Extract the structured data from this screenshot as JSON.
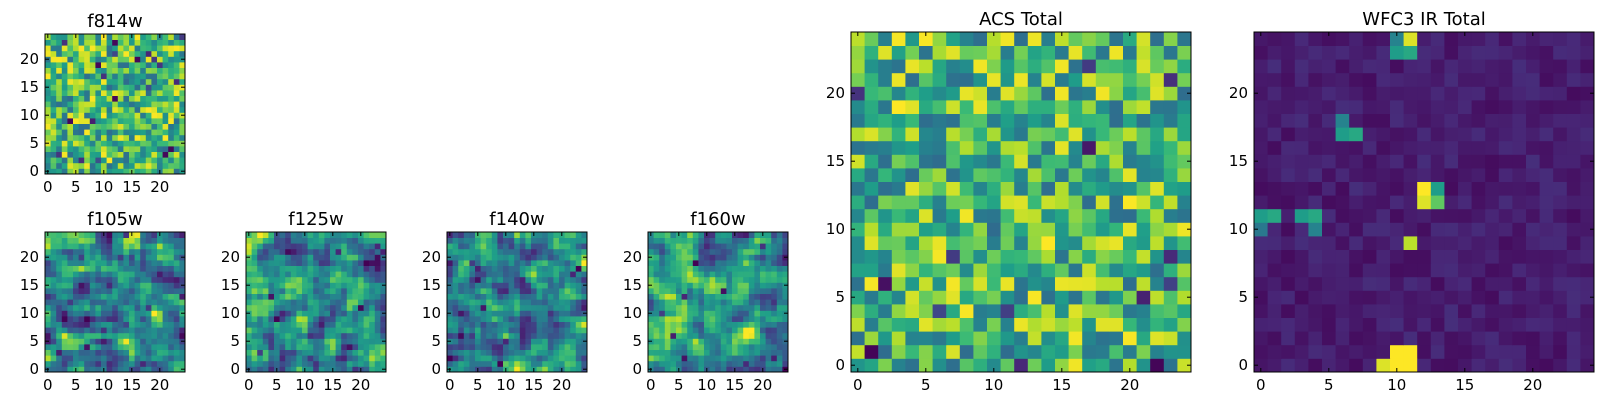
{
  "figure": {
    "description_colormap": "viridis",
    "colors": {
      "low": "#440154",
      "mid": "#21918c",
      "high": "#fde725",
      "frame": "#000000"
    }
  },
  "chart_data": [
    {
      "type": "heatmap",
      "id": "f814w",
      "title": "f814w",
      "grid": [
        25,
        25
      ],
      "xlim": [
        0,
        25
      ],
      "ylim": [
        0,
        25
      ],
      "x_ticks": [
        "0",
        "5",
        "10",
        "15",
        "20"
      ],
      "y_ticks": [
        "0",
        "5",
        "10",
        "15",
        "20"
      ],
      "pattern": "random noise",
      "seed": 11,
      "hot_cells": [
        [
          22,
          4
        ],
        [
          9,
          19
        ],
        [
          4,
          9
        ],
        [
          16,
          20
        ],
        [
          12,
          13
        ],
        [
          21,
          3
        ]
      ]
    },
    {
      "type": "heatmap",
      "id": "f105w",
      "title": "f105w",
      "grid": [
        25,
        25
      ],
      "xlim": [
        0,
        25
      ],
      "ylim": [
        0,
        25
      ],
      "x_ticks": [
        "0",
        "5",
        "10",
        "15",
        "20"
      ],
      "y_ticks": [
        "0",
        "5",
        "10",
        "15",
        "20"
      ],
      "pattern": "smoothed noise",
      "seed": 23
    },
    {
      "type": "heatmap",
      "id": "f125w",
      "title": "f125w",
      "grid": [
        25,
        25
      ],
      "xlim": [
        0,
        25
      ],
      "ylim": [
        0,
        25
      ],
      "x_ticks": [
        "0",
        "5",
        "10",
        "15",
        "20"
      ],
      "y_ticks": [
        "0",
        "5",
        "10",
        "15",
        "20"
      ],
      "pattern": "smoothed noise",
      "seed": 37
    },
    {
      "type": "heatmap",
      "id": "f140w",
      "title": "f140w",
      "grid": [
        25,
        25
      ],
      "xlim": [
        0,
        25
      ],
      "ylim": [
        0,
        25
      ],
      "x_ticks": [
        "0",
        "5",
        "10",
        "15",
        "20"
      ],
      "y_ticks": [
        "0",
        "5",
        "10",
        "15",
        "20"
      ],
      "pattern": "smoothed noise",
      "seed": 41
    },
    {
      "type": "heatmap",
      "id": "f160w",
      "title": "f160w",
      "grid": [
        25,
        25
      ],
      "xlim": [
        0,
        25
      ],
      "ylim": [
        0,
        25
      ],
      "x_ticks": [
        "0",
        "5",
        "10",
        "15",
        "20"
      ],
      "y_ticks": [
        "0",
        "5",
        "10",
        "15",
        "20"
      ],
      "pattern": "smoothed noise",
      "seed": 53
    },
    {
      "type": "heatmap",
      "id": "acs_total",
      "title": "ACS Total",
      "grid": [
        25,
        25
      ],
      "xlim": [
        0,
        25
      ],
      "ylim": [
        0,
        25
      ],
      "x_ticks": [
        "0",
        "5",
        "10",
        "15",
        "20"
      ],
      "y_ticks": [
        "0",
        "5",
        "10",
        "15",
        "20"
      ],
      "pattern": "random noise",
      "seed": 67
    },
    {
      "type": "heatmap",
      "id": "wfc3_ir_total",
      "title": "WFC3 IR Total",
      "grid": [
        25,
        25
      ],
      "xlim": [
        0,
        25
      ],
      "ylim": [
        0,
        25
      ],
      "x_ticks": [
        "0",
        "5",
        "10",
        "15",
        "20"
      ],
      "y_ticks": [
        "0",
        "5",
        "10",
        "15",
        "20"
      ],
      "pattern": "dark background with bright sources",
      "seed": 79,
      "bright_sources": [
        {
          "x": 10,
          "y": 0,
          "value": 1.0
        },
        {
          "x": 11,
          "y": 0,
          "value": 1.0
        },
        {
          "x": 10,
          "y": 1,
          "value": 1.0
        },
        {
          "x": 11,
          "y": 1,
          "value": 1.0
        },
        {
          "x": 9,
          "y": 0,
          "value": 0.95
        },
        {
          "x": 12,
          "y": 13,
          "value": 1.0
        },
        {
          "x": 12,
          "y": 12,
          "value": 0.95
        },
        {
          "x": 13,
          "y": 13,
          "value": 0.55
        },
        {
          "x": 13,
          "y": 12,
          "value": 0.75
        },
        {
          "x": 11,
          "y": 9,
          "value": 0.9
        },
        {
          "x": 11,
          "y": 24,
          "value": 0.95
        },
        {
          "x": 10,
          "y": 24,
          "value": 0.45
        },
        {
          "x": 10,
          "y": 23,
          "value": 0.55
        },
        {
          "x": 11,
          "y": 23,
          "value": 0.6
        },
        {
          "x": 0,
          "y": 11,
          "value": 0.55
        },
        {
          "x": 1,
          "y": 11,
          "value": 0.6
        },
        {
          "x": 0,
          "y": 10,
          "value": 0.4
        },
        {
          "x": 3,
          "y": 11,
          "value": 0.55
        },
        {
          "x": 4,
          "y": 11,
          "value": 0.6
        },
        {
          "x": 4,
          "y": 10,
          "value": 0.45
        },
        {
          "x": 6,
          "y": 17,
          "value": 0.55
        },
        {
          "x": 7,
          "y": 17,
          "value": 0.6
        },
        {
          "x": 6,
          "y": 18,
          "value": 0.45
        }
      ]
    }
  ]
}
